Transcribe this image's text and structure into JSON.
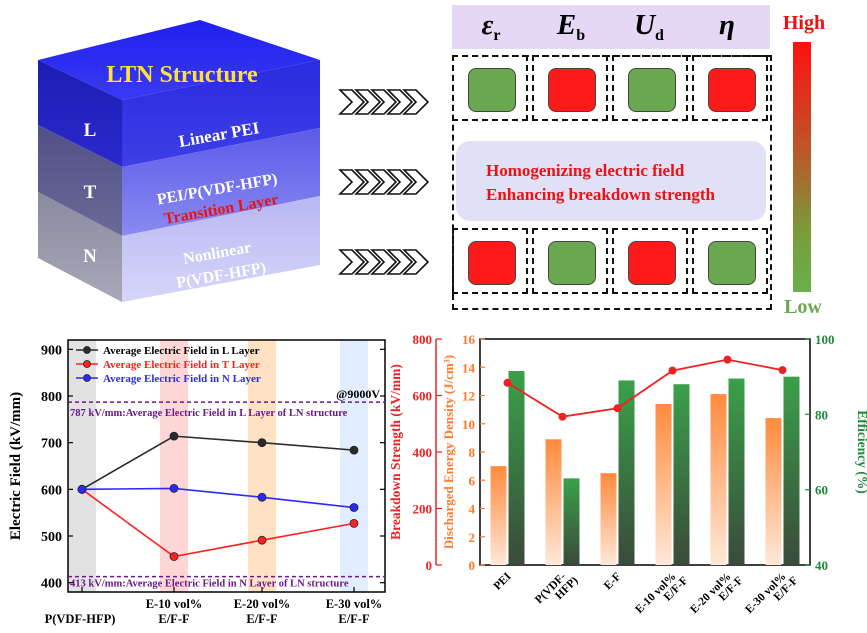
{
  "cube": {
    "title": "LTN Structure",
    "layers": [
      {
        "letter": "L",
        "text_lines": [
          "Linear PEI"
        ]
      },
      {
        "letter": "T",
        "text_lines": [
          "PEI/P(VDF-HFP)",
          "Transition Layer"
        ]
      },
      {
        "letter": "N",
        "text_lines": [
          "Nonlinear",
          "P(VDF-HFP)"
        ]
      }
    ]
  },
  "property_table": {
    "headers": [
      {
        "symbol": "ε",
        "sub": "r"
      },
      {
        "symbol": "E",
        "sub": "b"
      },
      {
        "symbol": "U",
        "sub": "d"
      },
      {
        "symbol": "η",
        "sub": ""
      }
    ],
    "l_row": [
      "low",
      "high",
      "low",
      "high"
    ],
    "n_row": [
      "high",
      "low",
      "high",
      "low"
    ],
    "middle_text": [
      "Homogenizing electric field",
      "Enhancing breakdown strength"
    ],
    "scale_high": "High",
    "scale_low": "Low",
    "colors": {
      "high": "#ff1a1a",
      "low": "#6aa84f"
    }
  },
  "chart_data": [
    {
      "type": "line",
      "title": "",
      "annotation": "@9000V",
      "xlabel": "",
      "ylabel": "Electric Field (kV/mm)",
      "categories": [
        "P(VDF-HFP)",
        "E-10 vol% E/F-F",
        "E-20 vol% E/F-F",
        "E-30 vol% E/F-F"
      ],
      "ylim": [
        380,
        920
      ],
      "yticks": [
        400,
        500,
        600,
        700,
        800,
        900
      ],
      "series": [
        {
          "name": "Average Electric Field in  L Layer",
          "color": "#2b2b2b",
          "values": [
            600,
            714,
            700,
            684
          ]
        },
        {
          "name": "Average Electric Field in  T Layer",
          "color": "#ff2020",
          "values": [
            600,
            456,
            491,
            527
          ]
        },
        {
          "name": "Average Electric Field in  N Layer",
          "color": "#2a2aff",
          "values": [
            600,
            602,
            583,
            561
          ]
        }
      ],
      "reference_lines": [
        {
          "value": 787,
          "label": "787 kV/mm:Average Electric Field in L Layer of LN structure"
        },
        {
          "value": 413,
          "label": "413 kV/mm:Average Electric Field in N Layer of LN structure"
        }
      ]
    },
    {
      "type": "bar",
      "title": "",
      "categories": [
        "PEI",
        "P(VDF-HFP)",
        "E-F",
        "E-10 vol% E/F-F",
        "E-20 vol% E/F-F",
        "E-30 vol% E/F-F"
      ],
      "ylabel_left": "Breakdown Strength (kV/mm)",
      "ylabel_left2": "Discharged Energy Density (J/cm³)",
      "ylabel_right": "Efficiency (%)",
      "ylim_left": [
        0,
        800
      ],
      "yticks_left": [
        0,
        200,
        400,
        600,
        800
      ],
      "ylim_left2": [
        0,
        16
      ],
      "yticks_left2": [
        0,
        2,
        4,
        6,
        8,
        10,
        12,
        14,
        16
      ],
      "ylim_right": [
        40,
        100
      ],
      "yticks_right": [
        40,
        60,
        80,
        100
      ],
      "series": [
        {
          "name": "Breakdown Strength",
          "type": "line",
          "axis": "left",
          "color": "#ee2222",
          "values": [
            645,
            525,
            555,
            688,
            727,
            690
          ]
        },
        {
          "name": "Discharged Energy Density",
          "type": "bar",
          "axis": "left2",
          "color": "#ff8a3d",
          "values": [
            7.0,
            8.9,
            6.5,
            11.4,
            12.1,
            10.4
          ]
        },
        {
          "name": "Efficiency",
          "type": "bar",
          "axis": "right",
          "color": "#3a9a4a",
          "values": [
            91.5,
            63.0,
            89.0,
            88.0,
            89.5,
            90.0
          ]
        }
      ]
    }
  ]
}
